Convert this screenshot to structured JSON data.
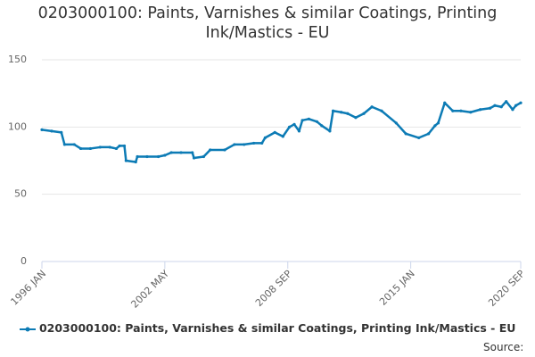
{
  "chart_data": {
    "type": "line",
    "title": "0203000100: Paints, Varnishes & similar Coatings, Printing Ink/Mastics - EU",
    "x": [
      "1996 JAN",
      "1996 JUL",
      "1997 JAN",
      "1997 MAR",
      "1997 SEP",
      "1998 JAN",
      "1998 JUL",
      "1999 JAN",
      "1999 JUL",
      "1999 NOV",
      "2000 JAN",
      "2000 APR",
      "2000 MAY",
      "2000 NOV",
      "2000 DEC",
      "2001 JUN",
      "2002 JAN",
      "2002 MAY",
      "2002 SEP",
      "2003 MAR",
      "2003 OCT",
      "2003 NOV",
      "2004 MAY",
      "2004 SEP",
      "2005 JUN",
      "2005 DEC",
      "2006 JUN",
      "2006 DEC",
      "2007 MAY",
      "2007 JUL",
      "2008 JAN",
      "2008 JUN",
      "2008 OCT",
      "2009 JAN",
      "2009 APR",
      "2009 JUN",
      "2009 OCT",
      "2010 MAR",
      "2010 JUN",
      "2010 NOV",
      "2011 JAN",
      "2011 JUN",
      "2011 OCT",
      "2012 MAR",
      "2012 AUG",
      "2013 JAN",
      "2013 JUL",
      "2014 APR",
      "2014 OCT",
      "2015 JUN",
      "2015 DEC",
      "2016 APR",
      "2016 JUN",
      "2016 OCT",
      "2017 MAR",
      "2017 AUG",
      "2018 FEB",
      "2018 AUG",
      "2019 FEB",
      "2019 MAY",
      "2019 SEP",
      "2019 DEC",
      "2020 APR",
      "2020 JUN",
      "2020 SEP"
    ],
    "series": [
      {
        "name": "0203000100: Paints, Varnishes & similar Coatings, Printing Ink/Mastics - EU",
        "color": "#0c7bb5",
        "values": [
          98,
          97,
          96,
          87,
          87,
          84,
          84,
          85,
          85,
          84,
          86,
          86,
          75,
          74,
          78,
          78,
          78,
          79,
          81,
          81,
          81,
          77,
          78,
          83,
          83,
          87,
          87,
          88,
          88,
          92,
          96,
          93,
          100,
          102,
          97,
          105,
          106,
          104,
          101,
          97,
          112,
          111,
          110,
          107,
          110,
          115,
          112,
          103,
          95,
          92,
          95,
          101,
          103,
          118,
          112,
          112,
          111,
          113,
          114,
          116,
          115,
          119,
          113,
          116,
          118
        ]
      }
    ],
    "xticks": [
      "1996 JAN",
      "2002 MAY",
      "2008 SEP",
      "2015 JAN",
      "2020 SEP"
    ],
    "ylim": [
      0,
      150
    ],
    "yticks": [
      0,
      50,
      100,
      150
    ],
    "grid": true,
    "source_label": "Source:"
  }
}
